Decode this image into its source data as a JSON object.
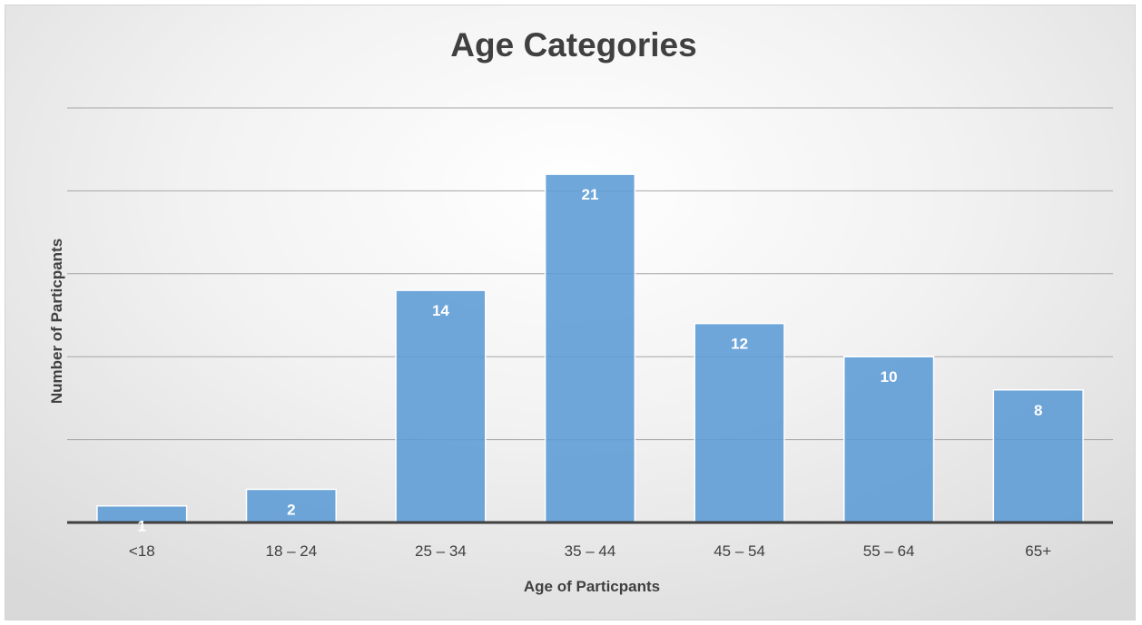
{
  "chart_data": {
    "type": "bar",
    "title": "Age Categories",
    "xlabel": "Age of Particpants",
    "ylabel": "Number of Particpants",
    "categories": [
      "<18",
      "18 – 24",
      "25 – 34",
      "35 – 44",
      "45 – 54",
      "55 – 64",
      "65+"
    ],
    "values": [
      1,
      2,
      14,
      21,
      12,
      10,
      8
    ],
    "ylim": [
      0,
      25
    ],
    "gridlines": [
      5,
      10,
      15,
      20,
      25
    ],
    "grid": true,
    "legend": "none",
    "colors": {
      "bar": "#5b9bd5",
      "bar_border": "#ffffff",
      "gridline": "#a6a6a6",
      "axis": "#404040",
      "text": "#404040",
      "label": "#ffffff"
    }
  }
}
